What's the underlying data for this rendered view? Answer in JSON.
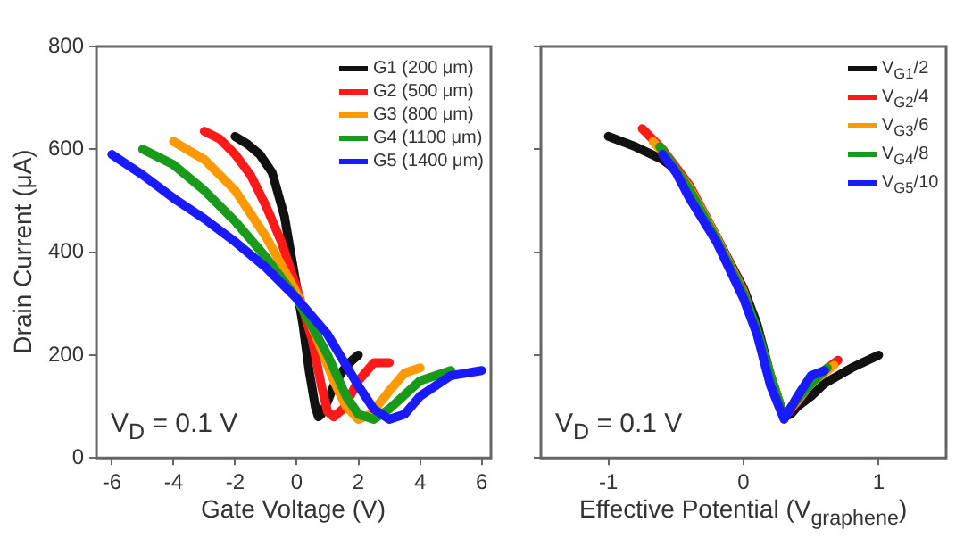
{
  "chart_data": [
    {
      "type": "line",
      "xlabel": "Gate Voltage (V)",
      "ylabel": "Drain Current (μA)",
      "xlim": [
        -6.5,
        6.3
      ],
      "ylim": [
        0,
        800
      ],
      "xticks": [
        -6,
        -4,
        -2,
        0,
        2,
        4,
        6
      ],
      "yticks": [
        0,
        200,
        400,
        600,
        800
      ],
      "grid": false,
      "legend": "top right",
      "annotations": [
        "V$_{D}$ = 0.1 V"
      ],
      "series": [
        {
          "name": "G1 (200 μm)",
          "color": "#111111",
          "x": [
            -2,
            -1.6,
            -1.2,
            -0.8,
            -0.4,
            0,
            0.2,
            0.4,
            0.6,
            0.7,
            0.8,
            1.0,
            1.2,
            1.5,
            1.8,
            2
          ],
          "values": [
            625,
            610,
            590,
            555,
            470,
            330,
            260,
            170,
            100,
            80,
            85,
            110,
            140,
            170,
            190,
            200
          ]
        },
        {
          "name": "G2 (500 μm)",
          "color": "#ff1a1a",
          "x": [
            -3,
            -2.5,
            -2,
            -1.5,
            -1,
            -0.5,
            0,
            0.5,
            0.8,
            1.0,
            1.2,
            1.5,
            2,
            2.5,
            3
          ],
          "values": [
            635,
            620,
            590,
            550,
            490,
            420,
            330,
            230,
            140,
            90,
            80,
            95,
            150,
            185,
            185
          ]
        },
        {
          "name": "G3 (800 μm)",
          "color": "#ff9900",
          "x": [
            -4,
            -3,
            -2,
            -1,
            0,
            0.6,
            1.2,
            1.6,
            2,
            2.4,
            3,
            3.5,
            4
          ],
          "values": [
            615,
            580,
            520,
            430,
            320,
            240,
            150,
            100,
            75,
            85,
            130,
            165,
            175
          ]
        },
        {
          "name": "G4 (1100 μm)",
          "color": "#1a9a1a",
          "x": [
            -5,
            -4,
            -3,
            -2,
            -1,
            0,
            1,
            1.6,
            2,
            2.5,
            3,
            4,
            5
          ],
          "values": [
            600,
            570,
            520,
            460,
            390,
            310,
            200,
            120,
            85,
            75,
            95,
            150,
            170
          ]
        },
        {
          "name": "G5 (1400 μm)",
          "color": "#1a1aff",
          "x": [
            -6,
            -5,
            -4,
            -3,
            -2,
            -1,
            0,
            1,
            2,
            2.5,
            3,
            3.5,
            4,
            5,
            6
          ],
          "values": [
            590,
            550,
            505,
            465,
            420,
            370,
            310,
            240,
            140,
            95,
            75,
            85,
            120,
            160,
            170
          ]
        }
      ]
    },
    {
      "type": "line",
      "xlabel": "Effective Potential (V$_{graphene}$)",
      "xlim": [
        -1.5,
        1.5
      ],
      "ylim": [
        0,
        800
      ],
      "xticks": [
        -1,
        0,
        1
      ],
      "yticks": [
        0,
        200,
        400,
        600,
        800
      ],
      "tick_labels": "x",
      "grid": false,
      "legend": "top right",
      "annotations": [
        "V$_{D}$ = 0.1 V"
      ],
      "series": [
        {
          "name": "V$_{G1}$/2",
          "color": "#111111",
          "x": [
            -1,
            -0.8,
            -0.6,
            -0.5,
            -0.4,
            -0.2,
            0,
            0.1,
            0.2,
            0.3,
            0.35,
            0.4,
            0.5,
            0.6,
            0.8,
            1
          ],
          "values": [
            625,
            605,
            580,
            560,
            525,
            430,
            330,
            260,
            160,
            80,
            85,
            100,
            120,
            145,
            175,
            200
          ]
        },
        {
          "name": "V$_{G2}$/4",
          "color": "#ff1a1a",
          "x": [
            -0.75,
            -0.6,
            -0.4,
            -0.2,
            0,
            0.1,
            0.2,
            0.3,
            0.4,
            0.5,
            0.6,
            0.7
          ],
          "values": [
            640,
            600,
            530,
            430,
            325,
            null,
            160,
            80,
            110,
            145,
            170,
            190
          ]
        },
        {
          "name": "V$_{G3}$/6",
          "color": "#ff9900",
          "x": [
            -0.67,
            -0.6,
            -0.4,
            -0.2,
            0,
            0.1,
            0.2,
            0.3,
            0.4,
            0.5,
            0.67
          ],
          "values": [
            615,
            595,
            525,
            428,
            322,
            null,
            160,
            80,
            112,
            145,
            180
          ]
        },
        {
          "name": "V$_{G4}$/8",
          "color": "#1a9a1a",
          "x": [
            -0.62,
            -0.5,
            -0.4,
            -0.2,
            0,
            0.1,
            0.2,
            0.3,
            0.4,
            0.5,
            0.62
          ],
          "values": [
            605,
            560,
            522,
            425,
            320,
            250,
            160,
            80,
            115,
            145,
            175
          ]
        },
        {
          "name": "V$_{G5}$/10",
          "color": "#1a1aff",
          "x": [
            -0.6,
            -0.5,
            -0.4,
            -0.2,
            0,
            0.1,
            0.2,
            0.3,
            0.4,
            0.5,
            0.6
          ],
          "values": [
            590,
            555,
            505,
            420,
            310,
            240,
            140,
            75,
            120,
            160,
            170
          ]
        }
      ]
    }
  ]
}
